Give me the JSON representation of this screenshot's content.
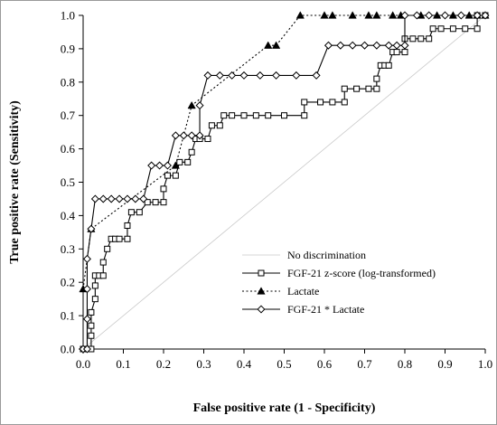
{
  "chart_data": {
    "type": "line",
    "title": "",
    "xlabel": "False positive rate (1 - Specificity)",
    "ylabel": "True positive rate (Sensitivity)",
    "xlim": [
      0,
      1
    ],
    "ylim": [
      0,
      1
    ],
    "x_ticks": [
      "0.0",
      "0.1",
      "0.2",
      "0.3",
      "0.4",
      "0.5",
      "0.6",
      "0.7",
      "0.8",
      "0.9",
      "1.0"
    ],
    "y_ticks": [
      "0.0",
      "0.1",
      "0.2",
      "0.3",
      "0.4",
      "0.5",
      "0.6",
      "0.7",
      "0.8",
      "0.9",
      "1.0"
    ],
    "grid": false,
    "legend_position": "bottom-right inside plot",
    "series": [
      {
        "name": "No discrimination",
        "style": "thin grey line, no markers",
        "color": "#c8c8c8",
        "marker": "none",
        "dash": "solid",
        "points": [
          [
            0,
            0
          ],
          [
            1,
            1
          ]
        ]
      },
      {
        "name": "FGF-21 z-score (log-transformed)",
        "style": "solid line, open square markers",
        "color": "#000000",
        "marker": "square",
        "dash": "solid",
        "points": [
          [
            0,
            0
          ],
          [
            0.01,
            0
          ],
          [
            0.02,
            0
          ],
          [
            0.02,
            0.04
          ],
          [
            0.02,
            0.07
          ],
          [
            0.02,
            0.11
          ],
          [
            0.03,
            0.15
          ],
          [
            0.03,
            0.19
          ],
          [
            0.03,
            0.22
          ],
          [
            0.04,
            0.22
          ],
          [
            0.05,
            0.22
          ],
          [
            0.05,
            0.26
          ],
          [
            0.06,
            0.3
          ],
          [
            0.07,
            0.33
          ],
          [
            0.08,
            0.33
          ],
          [
            0.09,
            0.33
          ],
          [
            0.11,
            0.33
          ],
          [
            0.11,
            0.37
          ],
          [
            0.12,
            0.41
          ],
          [
            0.14,
            0.41
          ],
          [
            0.16,
            0.44
          ],
          [
            0.18,
            0.44
          ],
          [
            0.2,
            0.44
          ],
          [
            0.2,
            0.48
          ],
          [
            0.21,
            0.52
          ],
          [
            0.23,
            0.52
          ],
          [
            0.24,
            0.56
          ],
          [
            0.26,
            0.56
          ],
          [
            0.27,
            0.59
          ],
          [
            0.28,
            0.63
          ],
          [
            0.29,
            0.63
          ],
          [
            0.31,
            0.63
          ],
          [
            0.32,
            0.67
          ],
          [
            0.34,
            0.67
          ],
          [
            0.35,
            0.7
          ],
          [
            0.37,
            0.7
          ],
          [
            0.4,
            0.7
          ],
          [
            0.43,
            0.7
          ],
          [
            0.46,
            0.7
          ],
          [
            0.5,
            0.7
          ],
          [
            0.55,
            0.7
          ],
          [
            0.55,
            0.74
          ],
          [
            0.59,
            0.74
          ],
          [
            0.62,
            0.74
          ],
          [
            0.65,
            0.74
          ],
          [
            0.65,
            0.78
          ],
          [
            0.68,
            0.78
          ],
          [
            0.71,
            0.78
          ],
          [
            0.73,
            0.78
          ],
          [
            0.73,
            0.81
          ],
          [
            0.74,
            0.85
          ],
          [
            0.75,
            0.85
          ],
          [
            0.76,
            0.85
          ],
          [
            0.77,
            0.89
          ],
          [
            0.78,
            0.89
          ],
          [
            0.8,
            0.89
          ],
          [
            0.8,
            0.93
          ],
          [
            0.82,
            0.93
          ],
          [
            0.84,
            0.93
          ],
          [
            0.86,
            0.93
          ],
          [
            0.87,
            0.96
          ],
          [
            0.89,
            0.96
          ],
          [
            0.92,
            0.96
          ],
          [
            0.95,
            0.96
          ],
          [
            0.98,
            0.96
          ],
          [
            0.98,
            1.0
          ],
          [
            1.0,
            1.0
          ]
        ]
      },
      {
        "name": "Lactate",
        "style": "dotted line, filled triangle markers",
        "color": "#000000",
        "marker": "triangle",
        "dash": "dotted",
        "points": [
          [
            0,
            0.18
          ],
          [
            0.02,
            0.36
          ],
          [
            0.23,
            0.55
          ],
          [
            0.27,
            0.73
          ],
          [
            0.46,
            0.91
          ],
          [
            0.48,
            0.91
          ],
          [
            0.54,
            1.0
          ],
          [
            0.6,
            1.0
          ],
          [
            0.62,
            1.0
          ],
          [
            0.67,
            1.0
          ],
          [
            0.71,
            1.0
          ],
          [
            0.73,
            1.0
          ],
          [
            0.77,
            1.0
          ],
          [
            0.79,
            1.0
          ],
          [
            0.84,
            1.0
          ],
          [
            0.88,
            1.0
          ],
          [
            0.92,
            1.0
          ],
          [
            0.96,
            1.0
          ],
          [
            0.98,
            1.0
          ],
          [
            1.0,
            1.0
          ]
        ]
      },
      {
        "name": "FGF-21 * Lactate",
        "style": "solid line, open diamond markers",
        "color": "#000000",
        "marker": "diamond",
        "dash": "solid",
        "points": [
          [
            0,
            0
          ],
          [
            0.01,
            0
          ],
          [
            0.01,
            0.09
          ],
          [
            0.01,
            0.18
          ],
          [
            0.01,
            0.27
          ],
          [
            0.02,
            0.36
          ],
          [
            0.03,
            0.45
          ],
          [
            0.05,
            0.45
          ],
          [
            0.07,
            0.45
          ],
          [
            0.09,
            0.45
          ],
          [
            0.11,
            0.45
          ],
          [
            0.13,
            0.45
          ],
          [
            0.15,
            0.45
          ],
          [
            0.17,
            0.55
          ],
          [
            0.19,
            0.55
          ],
          [
            0.21,
            0.55
          ],
          [
            0.23,
            0.64
          ],
          [
            0.25,
            0.64
          ],
          [
            0.27,
            0.64
          ],
          [
            0.29,
            0.64
          ],
          [
            0.29,
            0.73
          ],
          [
            0.31,
            0.82
          ],
          [
            0.34,
            0.82
          ],
          [
            0.37,
            0.82
          ],
          [
            0.4,
            0.82
          ],
          [
            0.44,
            0.82
          ],
          [
            0.48,
            0.82
          ],
          [
            0.53,
            0.82
          ],
          [
            0.58,
            0.82
          ],
          [
            0.61,
            0.91
          ],
          [
            0.64,
            0.91
          ],
          [
            0.67,
            0.91
          ],
          [
            0.7,
            0.91
          ],
          [
            0.73,
            0.91
          ],
          [
            0.76,
            0.91
          ],
          [
            0.78,
            0.91
          ],
          [
            0.8,
            0.91
          ],
          [
            0.8,
            1.0
          ],
          [
            0.83,
            1.0
          ],
          [
            0.86,
            1.0
          ],
          [
            0.9,
            1.0
          ],
          [
            0.94,
            1.0
          ],
          [
            0.98,
            1.0
          ],
          [
            1.0,
            1.0
          ]
        ]
      }
    ]
  }
}
